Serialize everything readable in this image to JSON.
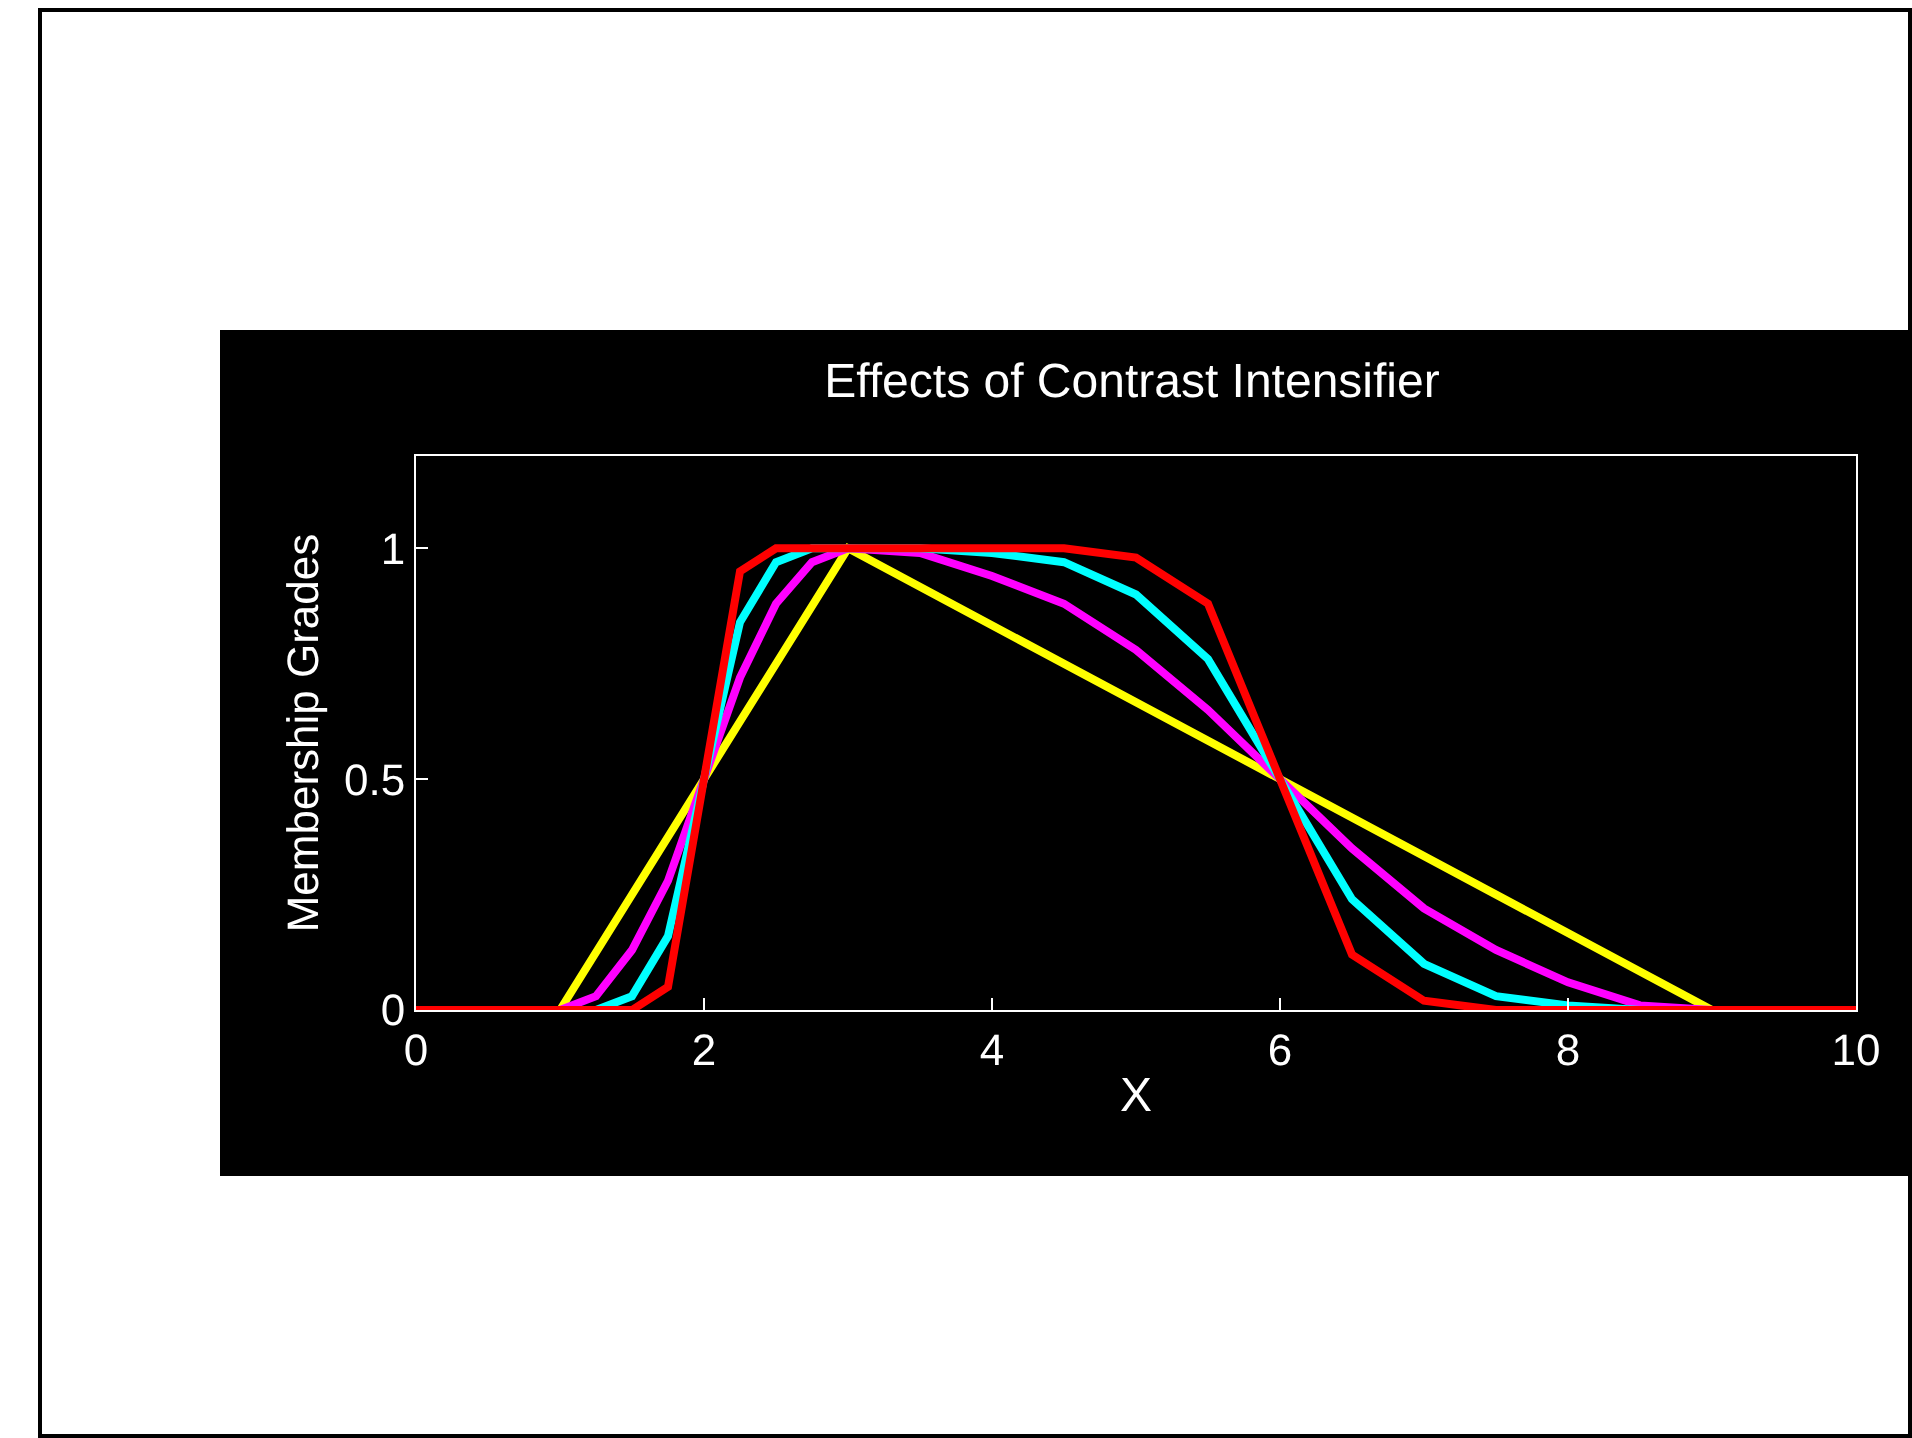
{
  "chart_data": {
    "type": "line",
    "title": "Effects of Contrast Intensifier",
    "xlabel": "X",
    "ylabel": "Membership Grades",
    "xlim": [
      0,
      10
    ],
    "ylim": [
      0,
      1.2
    ],
    "xticks": [
      0,
      2,
      4,
      6,
      8,
      10
    ],
    "yticks": [
      0,
      0.5,
      1
    ],
    "grid": false,
    "marker": "none",
    "line_style": "solid",
    "series": [
      {
        "color": "#ffff00",
        "x": [
          0,
          1,
          3,
          9,
          10
        ],
        "values": [
          0,
          0,
          1,
          0,
          0
        ]
      },
      {
        "color": "#ff00ff",
        "x": [
          0,
          1,
          1.25,
          1.5,
          1.75,
          2,
          2.25,
          2.5,
          2.75,
          3,
          3.5,
          4,
          4.5,
          5,
          5.5,
          6,
          6.5,
          7,
          7.5,
          8,
          8.5,
          9,
          10
        ],
        "values": [
          0,
          0,
          0.03,
          0.13,
          0.28,
          0.5,
          0.72,
          0.88,
          0.97,
          1,
          0.99,
          0.94,
          0.88,
          0.78,
          0.65,
          0.5,
          0.35,
          0.22,
          0.13,
          0.06,
          0.01,
          0,
          0
        ]
      },
      {
        "color": "#00ffff",
        "x": [
          0,
          1,
          1.25,
          1.5,
          1.75,
          2,
          2.25,
          2.5,
          2.75,
          3,
          3.5,
          4,
          4.5,
          5,
          5.5,
          6,
          6.5,
          7,
          7.5,
          8,
          8.5,
          9,
          10
        ],
        "values": [
          0,
          0,
          0,
          0.03,
          0.16,
          0.5,
          0.84,
          0.97,
          1,
          1,
          1,
          0.99,
          0.97,
          0.9,
          0.76,
          0.5,
          0.24,
          0.1,
          0.03,
          0.01,
          0,
          0,
          0
        ]
      },
      {
        "color": "#ff0000",
        "x": [
          0,
          1,
          1.25,
          1.5,
          1.75,
          2,
          2.25,
          2.5,
          2.75,
          3,
          3.5,
          4,
          4.5,
          5,
          5.5,
          6,
          6.5,
          7,
          7.5,
          8,
          8.5,
          9,
          10
        ],
        "values": [
          0,
          0,
          0,
          0,
          0.05,
          0.5,
          0.95,
          1,
          1,
          1,
          1,
          1,
          1,
          0.98,
          0.88,
          0.5,
          0.12,
          0.02,
          0,
          0,
          0,
          0,
          0
        ]
      }
    ]
  }
}
